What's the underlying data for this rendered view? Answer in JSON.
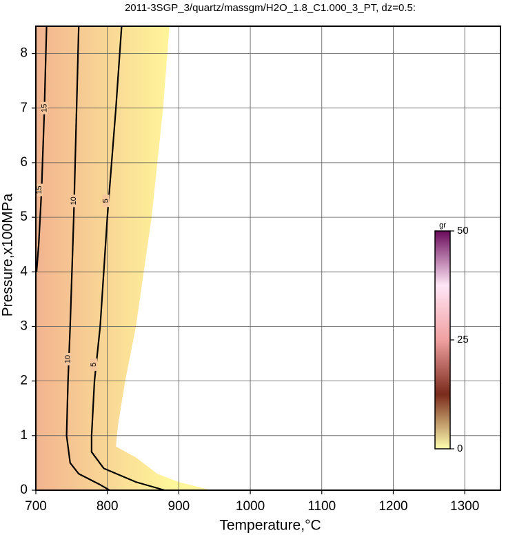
{
  "chart_data": {
    "type": "contour",
    "title": "2011-3SGP_3/quartz/massgm/H2O_1.8_C1.000_3_PT, dz=0.5:",
    "x_label": "Temperature,°C",
    "y_label": "Pressure,x100MPa",
    "xlim": [
      700,
      1350
    ],
    "ylim": [
      0,
      8.5
    ],
    "xticks": [
      700,
      800,
      900,
      1000,
      1100,
      1200,
      1300
    ],
    "yticks": [
      0,
      1,
      2,
      3,
      4,
      5,
      6,
      7,
      8
    ],
    "grid": true,
    "region": {
      "colors": [
        "#f2b48f",
        "#fff59a"
      ],
      "x": [
        700,
        887,
        878,
        862,
        840,
        825,
        815,
        812,
        840,
        870,
        900,
        945,
        700
      ],
      "y": [
        8.5,
        8.5,
        7,
        5,
        3,
        2,
        1.2,
        0.8,
        0.6,
        0.3,
        0.15,
        0,
        0
      ]
    },
    "contours": [
      {
        "level": 15,
        "x": [
          715,
          712,
          708,
          704,
          701
        ],
        "y": [
          8.5,
          7,
          5.5,
          4.5,
          4
        ]
      },
      {
        "level": 10,
        "x": [
          760,
          757,
          753,
          748,
          745,
          743,
          748,
          760,
          790,
          803
        ],
        "y": [
          8.5,
          7,
          5,
          3,
          2,
          1,
          0.5,
          0.3,
          0.1,
          0
        ]
      },
      {
        "level": 5,
        "x": [
          820,
          812,
          800,
          790,
          782,
          778,
          778,
          795,
          840,
          880
        ],
        "y": [
          8.5,
          7,
          5,
          3,
          2,
          1,
          0.7,
          0.4,
          0.15,
          0
        ]
      }
    ],
    "contour_labels": [
      {
        "text": "15",
        "x": 712,
        "y": 7
      },
      {
        "text": "15",
        "x": 705,
        "y": 5.5
      },
      {
        "text": "10",
        "x": 753,
        "y": 5.3
      },
      {
        "text": "10",
        "x": 745,
        "y": 2.4
      },
      {
        "text": "5",
        "x": 798,
        "y": 5.3
      },
      {
        "text": "5",
        "x": 781,
        "y": 2.3
      }
    ],
    "colorbar": {
      "label": "gr",
      "lim": [
        0,
        50
      ],
      "ticks": [
        0,
        25,
        50
      ],
      "colors": [
        "#ffffb0",
        "#7a2a1a",
        "#f0a0a0",
        "#ffe6f6",
        "#6a0a5a"
      ]
    }
  }
}
